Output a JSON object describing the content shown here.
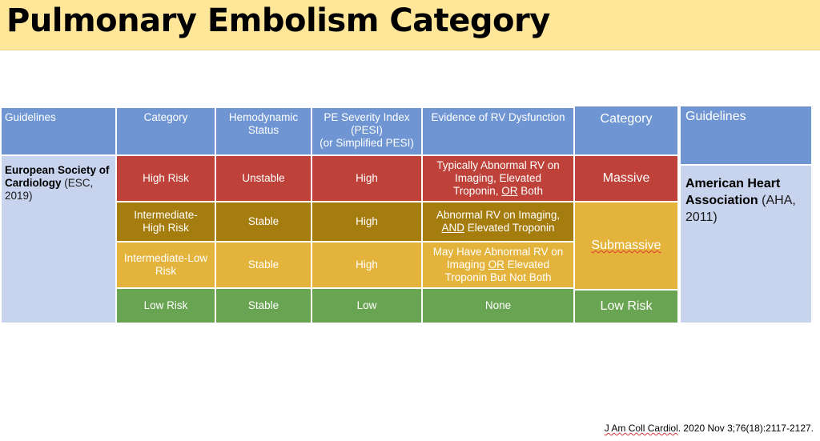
{
  "slide": {
    "title": "Pulmonary Embolism Category",
    "citation": {
      "journal": "J Am Coll Cardiol",
      "rest": ". 2020 Nov 3;76(18):2117-2127."
    }
  },
  "esc_table": {
    "headers": {
      "guidelines": "Guidelines",
      "category": "Category",
      "hemodynamic_line1": "Hemodynamic",
      "hemodynamic_line2": "Status",
      "pesi_line1": "PE Severity Index",
      "pesi_line2": "(PESI)",
      "pesi_line3": "(or Simplified PESI)",
      "rv": "Evidence of RV Dysfunction"
    },
    "guideline": {
      "bold": "European Society of Cardiology",
      "rest": " (ESC, 2019)"
    },
    "rows": [
      {
        "category": "High Risk",
        "hemodynamic": "Unstable",
        "pesi": "High",
        "rv": {
          "line1": "Typically Abnormal RV on",
          "line2": "Imaging, Elevated",
          "line3_pre": "Troponin, ",
          "line3_u": "OR",
          "line3_post": " Both"
        }
      },
      {
        "category_line1": "Intermediate-",
        "category_line2": "High Risk",
        "hemodynamic": "Stable",
        "pesi": "High",
        "rv": {
          "line1": "Abnormal RV on Imaging,",
          "line2_u": "AND",
          "line2_post": " Elevated Troponin"
        }
      },
      {
        "category_line1": "Intermediate-Low",
        "category_line2": "Risk",
        "hemodynamic": "Stable",
        "pesi": "High",
        "rv": {
          "line1": "May Have Abnormal RV on",
          "line2_pre": "Imaging ",
          "line2_u": "OR",
          "line2_post": " Elevated",
          "line3": "Troponin But Not Both"
        }
      },
      {
        "category": "Low Risk",
        "hemodynamic": "Stable",
        "pesi": "Low",
        "rv": {
          "line1": "None"
        }
      }
    ]
  },
  "aha_table": {
    "header_category": "Category",
    "header_guidelines": "Guidelines",
    "massive": "Massive",
    "submassive": "Submassive",
    "low_risk": "Low Risk",
    "guideline": {
      "bold": "American Heart Association",
      "rest": " (AHA, 2011)"
    }
  },
  "colors": {
    "title_bar": "#FFE699",
    "header_blue": "#6F96D2",
    "guideline_light_blue": "#C8D3EE",
    "high_risk_red": "#BE4239",
    "intermediate_high_olive": "#A57C0E",
    "intermediate_low_gold": "#E4B33B",
    "low_risk_green": "#69A453"
  }
}
